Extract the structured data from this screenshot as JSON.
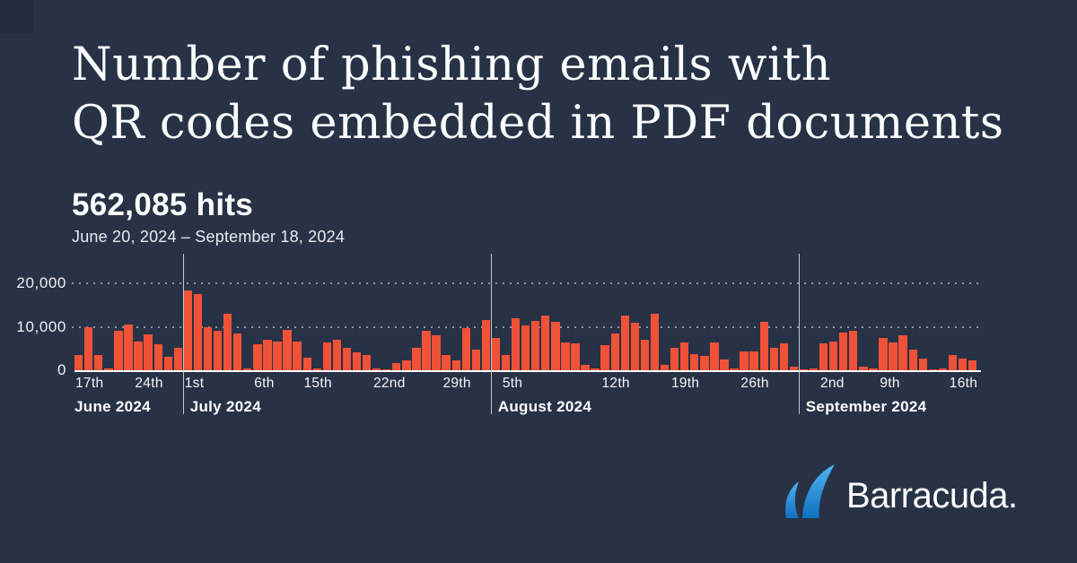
{
  "page": {
    "background": "#283246",
    "corner_accent_color": "#212b3d"
  },
  "title": {
    "line1": "Number of phishing emails with",
    "line2": "QR codes embedded in PDF documents"
  },
  "stats": {
    "hits": "562,085 hits",
    "date_range": "June 20, 2024 – September 18, 2024"
  },
  "chart_data": {
    "type": "bar",
    "title": "Number of phishing emails with QR codes embedded in PDF documents",
    "subtitle": "562,085 hits",
    "date_range": "June 20, 2024 – September 18, 2024",
    "xlabel": "",
    "ylabel": "",
    "ylim": [
      0,
      26000
    ],
    "grid": "dotted-horizontal",
    "bar_color": "#ef5237",
    "y_ticks": [
      {
        "label": "20,000",
        "value": 20000
      },
      {
        "label": "10,000",
        "value": 10000
      },
      {
        "label": "0",
        "value": 0
      }
    ],
    "values": [
      3500,
      9800,
      3500,
      500,
      9000,
      10500,
      6600,
      8200,
      5900,
      3000,
      5200,
      18300,
      17500,
      9900,
      9000,
      12900,
      8500,
      500,
      5900,
      7100,
      6700,
      9300,
      6600,
      2800,
      400,
      6400,
      7100,
      5200,
      4100,
      3500,
      400,
      300,
      1600,
      2200,
      5100,
      9000,
      8100,
      3500,
      2200,
      9700,
      4800,
      11500,
      7400,
      3500,
      11900,
      10350,
      11350,
      12500,
      11150,
      6450,
      6100,
      1300,
      500,
      5700,
      8400,
      12500,
      11000,
      7100,
      12900,
      1300,
      5100,
      6450,
      3800,
      3400,
      6450,
      2500,
      350,
      4350,
      4350,
      11150,
      5200,
      6250,
      800,
      270,
      450,
      6250,
      6600,
      8650,
      9100,
      800,
      350,
      7400,
      6400,
      8100,
      4750,
      2650,
      270,
      400,
      3500,
      2650,
      2200
    ],
    "x_tick_labels": [
      {
        "index": 0,
        "label": "17th"
      },
      {
        "index": 6,
        "label": "24th"
      },
      {
        "index": 11,
        "label": "1st"
      },
      {
        "index": 18,
        "label": "6th"
      },
      {
        "index": 23,
        "label": "15th"
      },
      {
        "index": 30,
        "label": "22nd"
      },
      {
        "index": 37,
        "label": "29th"
      },
      {
        "index": 43,
        "label": "5th"
      },
      {
        "index": 53,
        "label": "12th"
      },
      {
        "index": 60,
        "label": "19th"
      },
      {
        "index": 67,
        "label": "26th"
      },
      {
        "index": 75,
        "label": "2nd"
      },
      {
        "index": 81,
        "label": "9th"
      },
      {
        "index": 88,
        "label": "16th"
      }
    ],
    "month_dividers": [
      11,
      42,
      73
    ],
    "month_labels": [
      {
        "index": 0,
        "label": "June 2024"
      },
      {
        "index": 11,
        "label": "July 2024"
      },
      {
        "index": 42,
        "label": "August 2024"
      },
      {
        "index": 73,
        "label": "September 2024"
      }
    ]
  },
  "logo": {
    "text": "Barracuda.",
    "fin_color_top": "#4fb6f0",
    "fin_color_bottom": "#0f70c1"
  }
}
